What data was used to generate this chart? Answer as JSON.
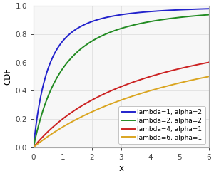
{
  "title": "",
  "xlabel": "x",
  "ylabel": "CDF",
  "xlim": [
    0,
    6
  ],
  "ylim": [
    0.0,
    1.0
  ],
  "xticks": [
    0,
    1,
    2,
    3,
    4,
    5,
    6
  ],
  "yticks": [
    0.0,
    0.2,
    0.4,
    0.6,
    0.8,
    1.0
  ],
  "curves": [
    {
      "lambda": 1,
      "alpha": 2,
      "color": "#2222CC",
      "label": "lambda=1, alpha=2"
    },
    {
      "lambda": 2,
      "alpha": 2,
      "color": "#228B22",
      "label": "lambda=2, alpha=2"
    },
    {
      "lambda": 4,
      "alpha": 1,
      "color": "#CC2222",
      "label": "lambda=4, alpha=1"
    },
    {
      "lambda": 6,
      "alpha": 1,
      "color": "#DAA520",
      "label": "lambda=6, alpha=1"
    }
  ],
  "plot_bg_color": "#f7f7f7",
  "outer_bg_color": "#ffffff",
  "grid_color": "#e0e0e0",
  "spine_color": "#aaaaaa",
  "legend_loc": "lower right",
  "legend_fontsize": 6.5,
  "axis_fontsize": 8.5,
  "tick_fontsize": 7.5,
  "linewidth": 1.4
}
